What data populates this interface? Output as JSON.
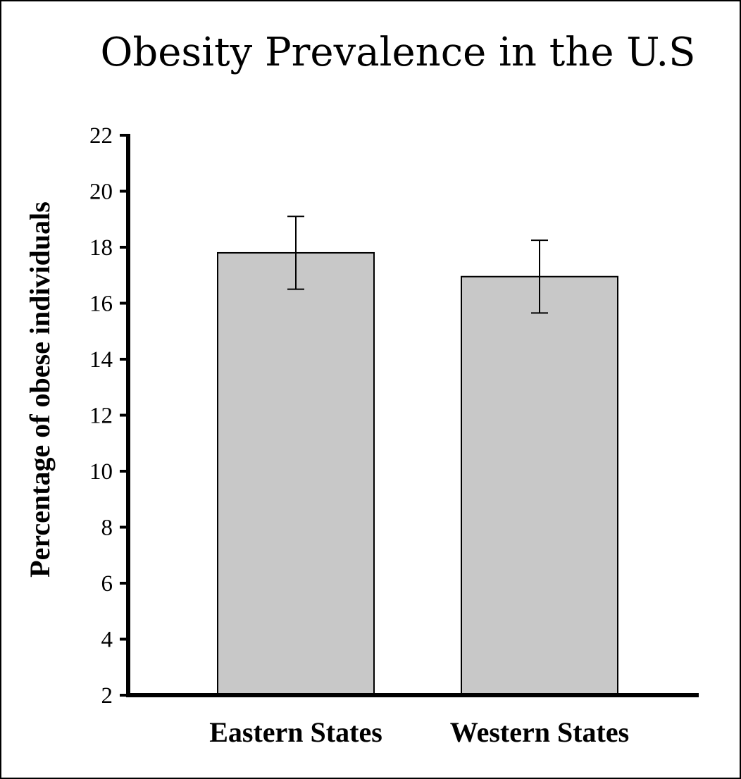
{
  "chart_data": {
    "type": "bar",
    "title": "Obesity Prevalence in the U.S",
    "xlabel": "",
    "ylabel": "Percentage of obese individuals",
    "categories": [
      "Eastern States",
      "Western States"
    ],
    "values": [
      17.8,
      16.95
    ],
    "error_low": [
      16.5,
      15.65
    ],
    "error_high": [
      19.1,
      18.25
    ],
    "ylim": [
      2,
      22
    ],
    "yticks": [
      2,
      4,
      6,
      8,
      10,
      12,
      14,
      16,
      18,
      20,
      22
    ],
    "bar_color": "#c8c8c8",
    "grid": false,
    "legend": "none"
  }
}
